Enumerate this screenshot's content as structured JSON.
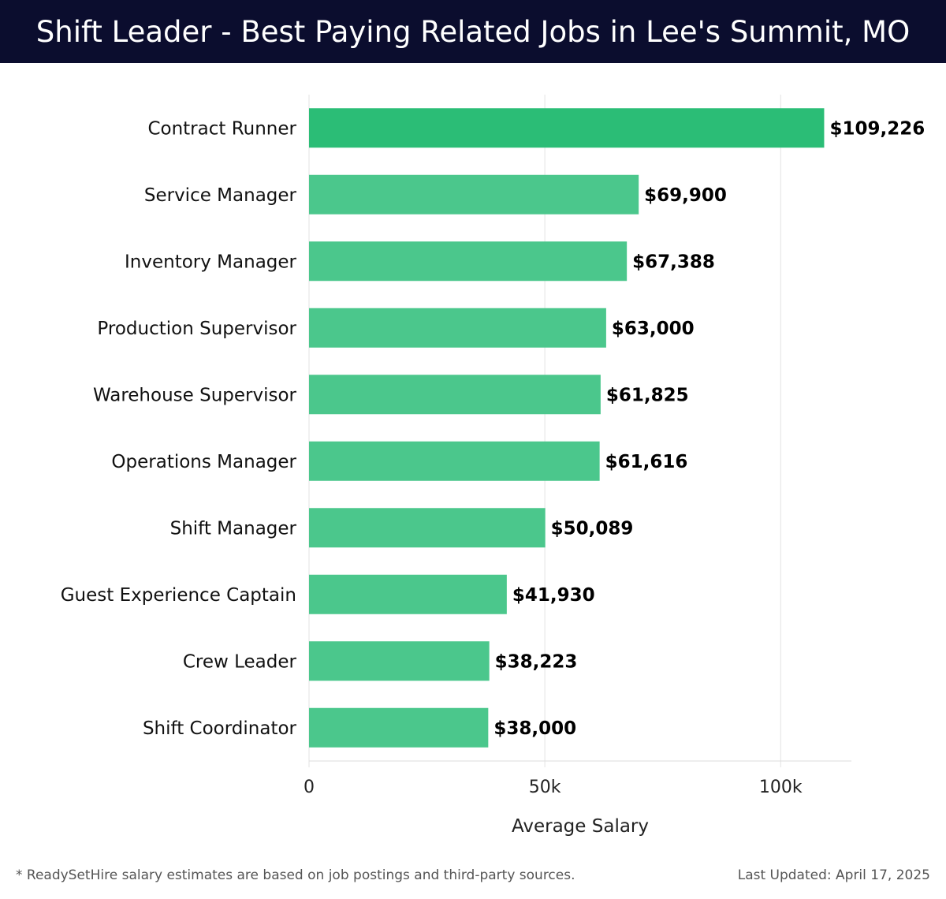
{
  "header": {
    "title": "Shift Leader - Best Paying Related Jobs in Lee's Summit, MO"
  },
  "footer": {
    "note": "* ReadySetHire salary estimates are based on job postings and third-party sources.",
    "updated": "Last Updated: April 17, 2025"
  },
  "colors": {
    "header_bg": "#0b0d2e",
    "top_bar": "#2bbd76",
    "bar": "#4bc78c",
    "grid": "#e3e3e3"
  },
  "chart_data": {
    "type": "bar",
    "orientation": "horizontal",
    "title": "Shift Leader - Best Paying Related Jobs in Lee's Summit, MO",
    "xlabel": "Average Salary",
    "ylabel": "",
    "categories": [
      "Contract Runner",
      "Service Manager",
      "Inventory Manager",
      "Production Supervisor",
      "Warehouse Supervisor",
      "Operations Manager",
      "Shift Manager",
      "Guest Experience Captain",
      "Crew Leader",
      "Shift Coordinator"
    ],
    "values": [
      109226,
      69900,
      67388,
      63000,
      61825,
      61616,
      50089,
      41930,
      38223,
      38000
    ],
    "value_labels": [
      "$109,226",
      "$69,900",
      "$67,388",
      "$63,000",
      "$61,825",
      "$61,616",
      "$50,089",
      "$41,930",
      "$38,223",
      "$38,000"
    ],
    "xlim": [
      0,
      115000
    ],
    "xticks": [
      0,
      50000,
      100000
    ],
    "xtick_labels": [
      "0",
      "50k",
      "100k"
    ],
    "grid": true
  }
}
